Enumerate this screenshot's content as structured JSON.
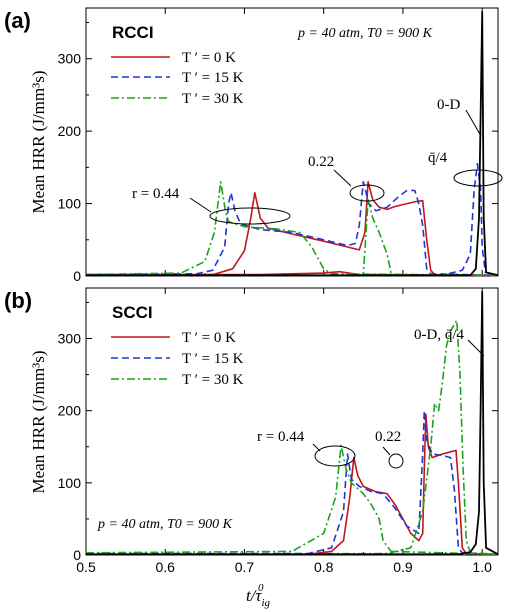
{
  "colors": {
    "t0": "#c0181e",
    "t15": "#2234d6",
    "t30": "#1aa51a",
    "zero_d": "#000000",
    "axis": "#000000"
  },
  "x_axis": {
    "label_main": "t/τ",
    "label_sub": "ig",
    "label_sup": "0",
    "ticks": [
      "0.5",
      "0.6",
      "0.7",
      "0.8",
      "0.9",
      "1.0"
    ]
  },
  "chart_data": [
    {
      "type": "line",
      "panel_letter": "(a)",
      "mode_label": "RCCI",
      "condition_label": "p = 40 atm, T0 = 900 K",
      "ylabel": "Mean HRR (J/mm³s)",
      "xlim": [
        0.5,
        1.02
      ],
      "ylim": [
        0,
        370
      ],
      "yticks": [
        "0",
        "100",
        "200",
        "300"
      ],
      "legend_location": "upper-left",
      "legend": [
        "T ′ = 0 K",
        "T ′ = 15 K",
        "T ′ = 30 K"
      ],
      "annotations": [
        "r = 0.44",
        "0.22",
        "q̄/4",
        "0-D"
      ],
      "series": [
        {
          "name": "T ′ = 0 K",
          "color_key": "t0",
          "dash": "solid",
          "groups": [
            [
              [
                0.5,
                1
              ],
              [
                0.62,
                1
              ],
              [
                0.66,
                2
              ],
              [
                0.685,
                10
              ],
              [
                0.7,
                35
              ],
              [
                0.708,
                80
              ],
              [
                0.713,
                115
              ],
              [
                0.72,
                80
              ],
              [
                0.73,
                66
              ],
              [
                0.76,
                58
              ],
              [
                0.8,
                48
              ],
              [
                0.83,
                40
              ],
              [
                0.845,
                36
              ],
              [
                0.852,
                60
              ],
              [
                0.856,
                130
              ],
              [
                0.862,
                105
              ],
              [
                0.87,
                95
              ],
              [
                0.88,
                92
              ],
              [
                0.89,
                96
              ],
              [
                0.905,
                100
              ],
              [
                0.918,
                103
              ],
              [
                0.925,
                104
              ],
              [
                0.93,
                50
              ],
              [
                0.935,
                8
              ],
              [
                0.94,
                2
              ],
              [
                0.97,
                1
              ],
              [
                1.02,
                1
              ]
            ],
            [
              [
                0.5,
                2
              ],
              [
                0.72,
                2
              ],
              [
                0.8,
                4
              ],
              [
                0.82,
                6
              ],
              [
                0.845,
                2
              ],
              [
                1.02,
                1
              ]
            ]
          ]
        },
        {
          "name": "T ′ = 15 K",
          "color_key": "t15",
          "dash": "dashed",
          "groups": [
            [
              [
                0.5,
                2
              ],
              [
                0.64,
                3
              ],
              [
                0.66,
                8
              ],
              [
                0.675,
                40
              ],
              [
                0.68,
                100
              ],
              [
                0.683,
                115
              ],
              [
                0.688,
                90
              ],
              [
                0.695,
                72
              ],
              [
                0.72,
                64
              ],
              [
                0.76,
                60
              ],
              [
                0.8,
                50
              ],
              [
                0.83,
                42
              ],
              [
                0.84,
                45
              ],
              [
                0.845,
                70
              ],
              [
                0.85,
                130
              ],
              [
                0.857,
                100
              ],
              [
                0.866,
                90
              ],
              [
                0.88,
                95
              ],
              [
                0.895,
                110
              ],
              [
                0.905,
                118
              ],
              [
                0.915,
                118
              ],
              [
                0.92,
                100
              ],
              [
                0.925,
                70
              ],
              [
                0.93,
                10
              ],
              [
                0.935,
                3
              ],
              [
                1.02,
                1
              ]
            ],
            [
              [
                0.5,
                1
              ],
              [
                0.95,
                1
              ],
              [
                0.975,
                8
              ],
              [
                0.985,
                30
              ],
              [
                0.99,
                120
              ],
              [
                0.994,
                155
              ],
              [
                0.998,
                120
              ],
              [
                1.0,
                40
              ],
              [
                1.004,
                5
              ],
              [
                1.02,
                1
              ]
            ]
          ]
        },
        {
          "name": "T ′ = 30 K",
          "color_key": "t30",
          "dash": "dashdot",
          "groups": [
            [
              [
                0.5,
                2
              ],
              [
                0.62,
                4
              ],
              [
                0.65,
                20
              ],
              [
                0.662,
                60
              ],
              [
                0.67,
                130
              ],
              [
                0.676,
                90
              ],
              [
                0.68,
                75
              ],
              [
                0.7,
                68
              ],
              [
                0.74,
                65
              ],
              [
                0.77,
                60
              ],
              [
                0.785,
                40
              ],
              [
                0.8,
                10
              ],
              [
                0.81,
                3
              ],
              [
                1.02,
                1
              ]
            ],
            [
              [
                0.5,
                1
              ],
              [
                0.84,
                1
              ],
              [
                0.85,
                2
              ],
              [
                0.856,
                105
              ],
              [
                0.862,
                80
              ],
              [
                0.87,
                60
              ],
              [
                0.88,
                30
              ],
              [
                0.885,
                5
              ],
              [
                0.89,
                2
              ],
              [
                1.02,
                1
              ]
            ]
          ]
        },
        {
          "name": "0-D",
          "color_key": "zero_d",
          "dash": "solid",
          "groups": [
            [
              [
                0.5,
                1
              ],
              [
                0.985,
                1
              ],
              [
                0.992,
                10
              ],
              [
                0.996,
                80
              ],
              [
                0.998,
                220
              ],
              [
                1.0,
                365
              ],
              [
                1.002,
                80
              ],
              [
                1.005,
                5
              ],
              [
                1.02,
                1
              ]
            ]
          ]
        }
      ]
    },
    {
      "type": "line",
      "panel_letter": "(b)",
      "mode_label": "SCCI",
      "condition_label": "p = 40 atm, T0 = 900 K",
      "ylabel": "Mean HRR (J/mm³s)",
      "xlim": [
        0.5,
        1.02
      ],
      "ylim": [
        0,
        370
      ],
      "yticks": [
        "0",
        "100",
        "200",
        "300"
      ],
      "legend_location": "upper-left",
      "legend": [
        "T ′ = 0 K",
        "T ′ = 15 K",
        "T ′ = 30 K"
      ],
      "annotations": [
        "r = 0.44",
        "0.22",
        "0-D, q̄/4"
      ],
      "series": [
        {
          "name": "T ′ = 0 K",
          "color_key": "t0",
          "dash": "solid",
          "groups": [
            [
              [
                0.5,
                1
              ],
              [
                0.78,
                1
              ],
              [
                0.81,
                5
              ],
              [
                0.825,
                20
              ],
              [
                0.833,
                80
              ],
              [
                0.838,
                135
              ],
              [
                0.843,
                110
              ],
              [
                0.85,
                95
              ],
              [
                0.865,
                88
              ],
              [
                0.88,
                85
              ],
              [
                0.89,
                70
              ],
              [
                0.9,
                50
              ],
              [
                0.91,
                30
              ],
              [
                0.92,
                20
              ],
              [
                0.925,
                30
              ],
              [
                0.927,
                120
              ],
              [
                0.929,
                195
              ],
              [
                0.932,
                150
              ],
              [
                0.937,
                135
              ],
              [
                0.95,
                140
              ],
              [
                0.96,
                143
              ],
              [
                0.967,
                145
              ],
              [
                0.97,
                100
              ],
              [
                0.975,
                10
              ],
              [
                0.98,
                2
              ],
              [
                1.02,
                1
              ]
            ]
          ]
        },
        {
          "name": "T ′ = 15 K",
          "color_key": "t15",
          "dash": "dashed",
          "groups": [
            [
              [
                0.5,
                2
              ],
              [
                0.78,
                2
              ],
              [
                0.81,
                10
              ],
              [
                0.825,
                60
              ],
              [
                0.83,
                140
              ],
              [
                0.835,
                105
              ],
              [
                0.845,
                95
              ],
              [
                0.86,
                88
              ],
              [
                0.875,
                85
              ],
              [
                0.89,
                65
              ],
              [
                0.905,
                40
              ],
              [
                0.92,
                30
              ],
              [
                0.925,
                140
              ],
              [
                0.927,
                200
              ],
              [
                0.93,
                160
              ],
              [
                0.937,
                140
              ],
              [
                0.95,
                138
              ],
              [
                0.96,
                135
              ],
              [
                0.965,
                90
              ],
              [
                0.97,
                10
              ],
              [
                0.975,
                3
              ],
              [
                1.02,
                1
              ]
            ]
          ]
        },
        {
          "name": "T ′ = 30 K",
          "color_key": "t30",
          "dash": "dashdot",
          "groups": [
            [
              [
                0.5,
                3
              ],
              [
                0.76,
                5
              ],
              [
                0.8,
                30
              ],
              [
                0.815,
                80
              ],
              [
                0.822,
                152
              ],
              [
                0.828,
                120
              ],
              [
                0.835,
                100
              ],
              [
                0.85,
                85
              ],
              [
                0.86,
                70
              ],
              [
                0.87,
                50
              ],
              [
                0.875,
                20
              ],
              [
                0.885,
                5
              ],
              [
                1.02,
                1
              ]
            ],
            [
              [
                0.5,
                1
              ],
              [
                0.88,
                2
              ],
              [
                0.91,
                10
              ],
              [
                0.925,
                60
              ],
              [
                0.935,
                150
              ],
              [
                0.94,
                210
              ],
              [
                0.945,
                200
              ],
              [
                0.95,
                240
              ],
              [
                0.955,
                290
              ],
              [
                0.96,
                310
              ],
              [
                0.965,
                320
              ],
              [
                0.968,
                325
              ],
              [
                0.972,
                250
              ],
              [
                0.976,
                120
              ],
              [
                0.98,
                20
              ],
              [
                0.985,
                3
              ],
              [
                1.02,
                1
              ]
            ]
          ]
        },
        {
          "name": "0-D",
          "color_key": "zero_d",
          "dash": "solid",
          "groups": [
            [
              [
                0.5,
                1
              ],
              [
                0.97,
                1
              ],
              [
                0.985,
                4
              ],
              [
                0.992,
                15
              ],
              [
                0.996,
                60
              ],
              [
                0.998,
                200
              ],
              [
                1.0,
                365
              ],
              [
                1.002,
                100
              ],
              [
                1.005,
                10
              ],
              [
                1.02,
                1
              ]
            ]
          ]
        }
      ]
    }
  ]
}
